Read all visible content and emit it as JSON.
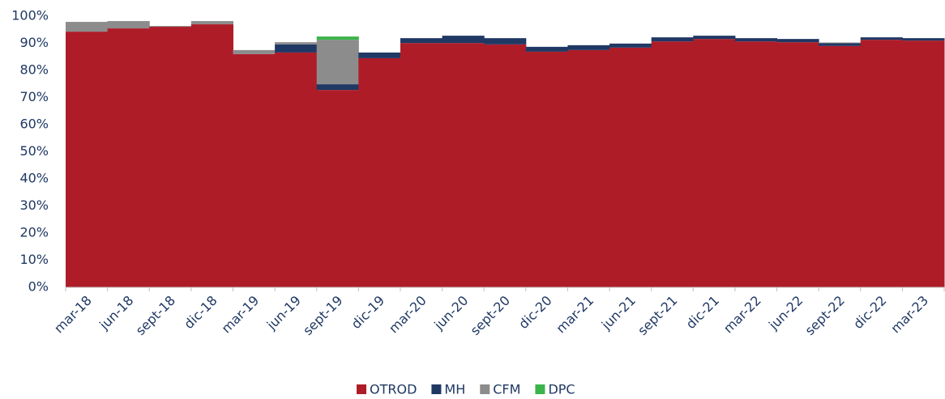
{
  "chart_data": {
    "type": "stacked_bar",
    "categories": [
      "mar-18",
      "jun-18",
      "sept-18",
      "dic-18",
      "mar-19",
      "jun-19",
      "sept-19",
      "dic-19",
      "mar-20",
      "jun-20",
      "sept-20",
      "dic-20",
      "mar-21",
      "jun-21",
      "sept-21",
      "dic-21",
      "mar-22",
      "jun-22",
      "sept-22",
      "dic-22",
      "mar-23"
    ],
    "series": [
      {
        "name": "OTROD",
        "color": "#ae1c28",
        "values": [
          94.3,
          95.5,
          96.1,
          97.0,
          86.0,
          86.6,
          72.8,
          84.5,
          90.1,
          90.1,
          89.6,
          86.9,
          87.5,
          88.4,
          90.7,
          91.6,
          90.7,
          90.4,
          89.0,
          91.3,
          91.0
        ]
      },
      {
        "name": "MH",
        "color": "#203864",
        "values": [
          0,
          0,
          0,
          0,
          0,
          3.0,
          2.1,
          2.1,
          1.8,
          2.7,
          2.3,
          1.8,
          1.8,
          1.5,
          1.5,
          1.2,
          1.2,
          1.2,
          1.0,
          0.9,
          0.9
        ]
      },
      {
        "name": "CFM",
        "color": "#8c8c8c",
        "values": [
          3.6,
          2.7,
          0.3,
          1.2,
          1.5,
          0.8,
          16.4,
          0,
          0,
          0,
          0,
          0,
          0,
          0,
          0,
          0,
          0,
          0,
          0.3,
          0,
          0
        ]
      },
      {
        "name": "DPC",
        "color": "#3cb44b",
        "values": [
          0,
          0,
          0,
          0,
          0,
          0,
          1.2,
          0,
          0,
          0,
          0,
          0,
          0,
          0,
          0,
          0,
          0,
          0,
          0,
          0,
          0
        ]
      }
    ],
    "ylim": [
      0,
      100
    ],
    "yticks": [
      {
        "value": 0,
        "label": "0%"
      },
      {
        "value": 10,
        "label": "10%"
      },
      {
        "value": 20,
        "label": "20%"
      },
      {
        "value": 30,
        "label": "30%"
      },
      {
        "value": 40,
        "label": "40%"
      },
      {
        "value": 50,
        "label": "50%"
      },
      {
        "value": 60,
        "label": "60%"
      },
      {
        "value": 70,
        "label": "70%"
      },
      {
        "value": 80,
        "label": "80%"
      },
      {
        "value": 90,
        "label": "90%"
      },
      {
        "value": 100,
        "label": "100%"
      }
    ],
    "grid": false,
    "legend": "bottom"
  }
}
